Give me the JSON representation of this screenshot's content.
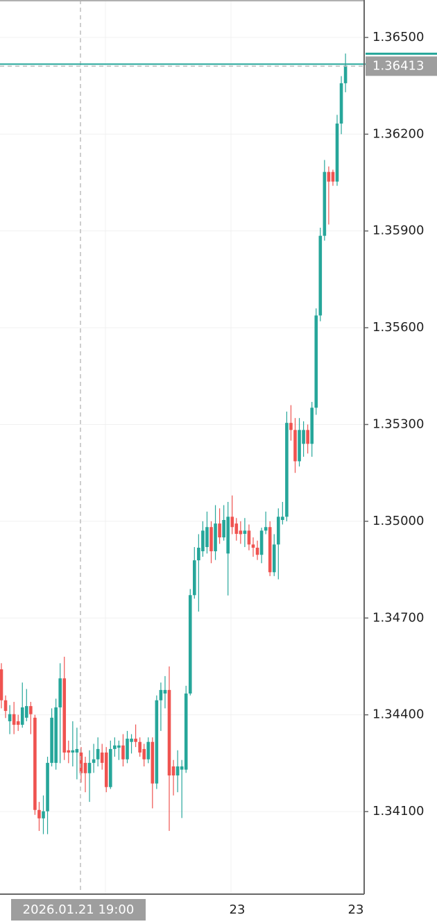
{
  "chart_data": {
    "type": "candlestick",
    "ylim": [
      1.33844,
      1.36616
    ],
    "yticks": [
      {
        "value": 1.365,
        "label": "1.36500"
      },
      {
        "value": 1.362,
        "label": "1.36200"
      },
      {
        "value": 1.359,
        "label": "1.35900"
      },
      {
        "value": 1.356,
        "label": "1.35600"
      },
      {
        "value": 1.353,
        "label": "1.35300"
      },
      {
        "value": 1.35,
        "label": "1.35000"
      },
      {
        "value": 1.347,
        "label": "1.34700"
      },
      {
        "value": 1.344,
        "label": "1.34400"
      },
      {
        "value": 1.341,
        "label": "1.34100"
      }
    ],
    "grid": true,
    "up_color": "#26a69a",
    "down_color": "#ef5350",
    "last_price": {
      "value": 1.36413,
      "label": "1.36413"
    },
    "crosshair_time": "2026.01.21 19:00",
    "x_labels": [
      "23",
      "23"
    ],
    "series": [
      {
        "open": [
          1.34541,
          1.34445,
          1.3438,
          1.34402,
          1.3438,
          1.34369,
          1.34391,
          1.34427,
          1.34391,
          1.34105,
          1.34079,
          1.34101,
          1.34251,
          1.34251,
          1.34423,
          1.34513,
          1.3429,
          1.34283,
          1.34283,
          1.34283,
          1.34251,
          1.34219,
          1.34251,
          1.34262,
          1.34283,
          1.34283,
          1.34176,
          1.34294,
          1.34298,
          1.34305,
          1.34262,
          1.34316,
          1.34326,
          1.34316,
          1.34294,
          1.34262,
          1.34316,
          1.34187,
          1.34445,
          1.34466,
          1.34477,
          1.3424,
          1.34212,
          1.3423,
          1.3423,
          1.34466,
          1.34771,
          1.34879,
          1.34907,
          1.3492,
          1.34982,
          1.34907,
          1.34993,
          1.3495,
          1.349,
          1.35014,
          1.34993,
          1.34971,
          1.34961,
          1.34971,
          1.34928,
          1.34918,
          1.34896,
          1.34971,
          1.34982,
          1.34842,
          1.34928,
          1.35004,
          1.35014,
          1.35305,
          1.35283,
          1.35186,
          1.3524,
          1.35283,
          1.3524,
          1.35352,
          1.35638,
          1.35885,
          1.36083,
          1.36083,
          1.36053,
          1.36233,
          1.36358
        ],
        "high": [
          1.3456,
          1.3446,
          1.3443,
          1.3444,
          1.344,
          1.345,
          1.3448,
          1.3444,
          1.344,
          1.3413,
          1.3415,
          1.3427,
          1.3442,
          1.3445,
          1.3456,
          1.3458,
          1.3432,
          1.3438,
          1.3436,
          1.343,
          1.3427,
          1.3429,
          1.3431,
          1.3433,
          1.3431,
          1.343,
          1.3432,
          1.3433,
          1.3432,
          1.3434,
          1.3435,
          1.3434,
          1.3437,
          1.3433,
          1.3431,
          1.3433,
          1.3433,
          1.3446,
          1.345,
          1.3452,
          1.3455,
          1.3426,
          1.3429,
          1.3426,
          1.3449,
          1.3479,
          1.3492,
          1.3496,
          1.35,
          1.3503,
          1.35,
          1.3505,
          1.3504,
          1.3505,
          1.3506,
          1.3508,
          1.3501,
          1.35,
          1.3501,
          1.3499,
          1.3495,
          1.3494,
          1.3498,
          1.3503,
          1.35,
          1.3496,
          1.3504,
          1.3506,
          1.3534,
          1.3536,
          1.3532,
          1.3532,
          1.3531,
          1.353,
          1.3537,
          1.3566,
          1.3591,
          1.3612,
          1.361,
          1.3609,
          1.3626,
          1.3638,
          1.3645
        ],
        "low": [
          1.3442,
          1.3439,
          1.3434,
          1.3434,
          1.3435,
          1.3436,
          1.3438,
          1.3434,
          1.3409,
          1.3404,
          1.3403,
          1.3403,
          1.3424,
          1.3423,
          1.3425,
          1.3426,
          1.3425,
          1.3424,
          1.342,
          1.3419,
          1.3416,
          1.3413,
          1.3422,
          1.3424,
          1.3423,
          1.3416,
          1.3417,
          1.3427,
          1.3426,
          1.3424,
          1.3425,
          1.3428,
          1.343,
          1.3427,
          1.3424,
          1.3425,
          1.3411,
          1.3417,
          1.3435,
          1.3442,
          1.3404,
          1.3415,
          1.3416,
          1.3408,
          1.3422,
          1.3446,
          1.3476,
          1.3472,
          1.3489,
          1.349,
          1.3487,
          1.3488,
          1.3493,
          1.3494,
          1.3477,
          1.3496,
          1.3494,
          1.3493,
          1.3492,
          1.3491,
          1.3489,
          1.3488,
          1.3487,
          1.3496,
          1.3483,
          1.3483,
          1.3482,
          1.3499,
          1.35,
          1.3525,
          1.3515,
          1.3517,
          1.352,
          1.3521,
          1.352,
          1.3533,
          1.3562,
          1.3587,
          1.3592,
          1.3604,
          1.3604,
          1.362,
          1.3633
        ],
        "close": [
          1.34445,
          1.34412,
          1.34402,
          1.34369,
          1.34369,
          1.34423,
          1.34427,
          1.34402,
          1.34105,
          1.34079,
          1.34101,
          1.34251,
          1.34391,
          1.34423,
          1.34513,
          1.34283,
          1.34283,
          1.3429,
          1.34294,
          1.34219,
          1.34219,
          1.34251,
          1.34262,
          1.34294,
          1.34251,
          1.34176,
          1.34294,
          1.34305,
          1.34305,
          1.34262,
          1.34326,
          1.34326,
          1.34316,
          1.34283,
          1.34262,
          1.34316,
          1.34187,
          1.34445,
          1.34477,
          1.34477,
          1.34212,
          1.34212,
          1.3424,
          1.3424,
          1.34466,
          1.34771,
          1.34879,
          1.34918,
          1.34971,
          1.34982,
          1.34907,
          1.34993,
          1.3495,
          1.35004,
          1.35014,
          1.34982,
          1.34961,
          1.3496,
          1.34971,
          1.34928,
          1.34918,
          1.34896,
          1.34971,
          1.34982,
          1.34842,
          1.34928,
          1.35014,
          1.35014,
          1.35305,
          1.35283,
          1.35186,
          1.35283,
          1.35283,
          1.3524,
          1.35352,
          1.35638,
          1.35885,
          1.36083,
          1.36053,
          1.36053,
          1.36233,
          1.36358,
          1.36413
        ]
      }
    ]
  }
}
